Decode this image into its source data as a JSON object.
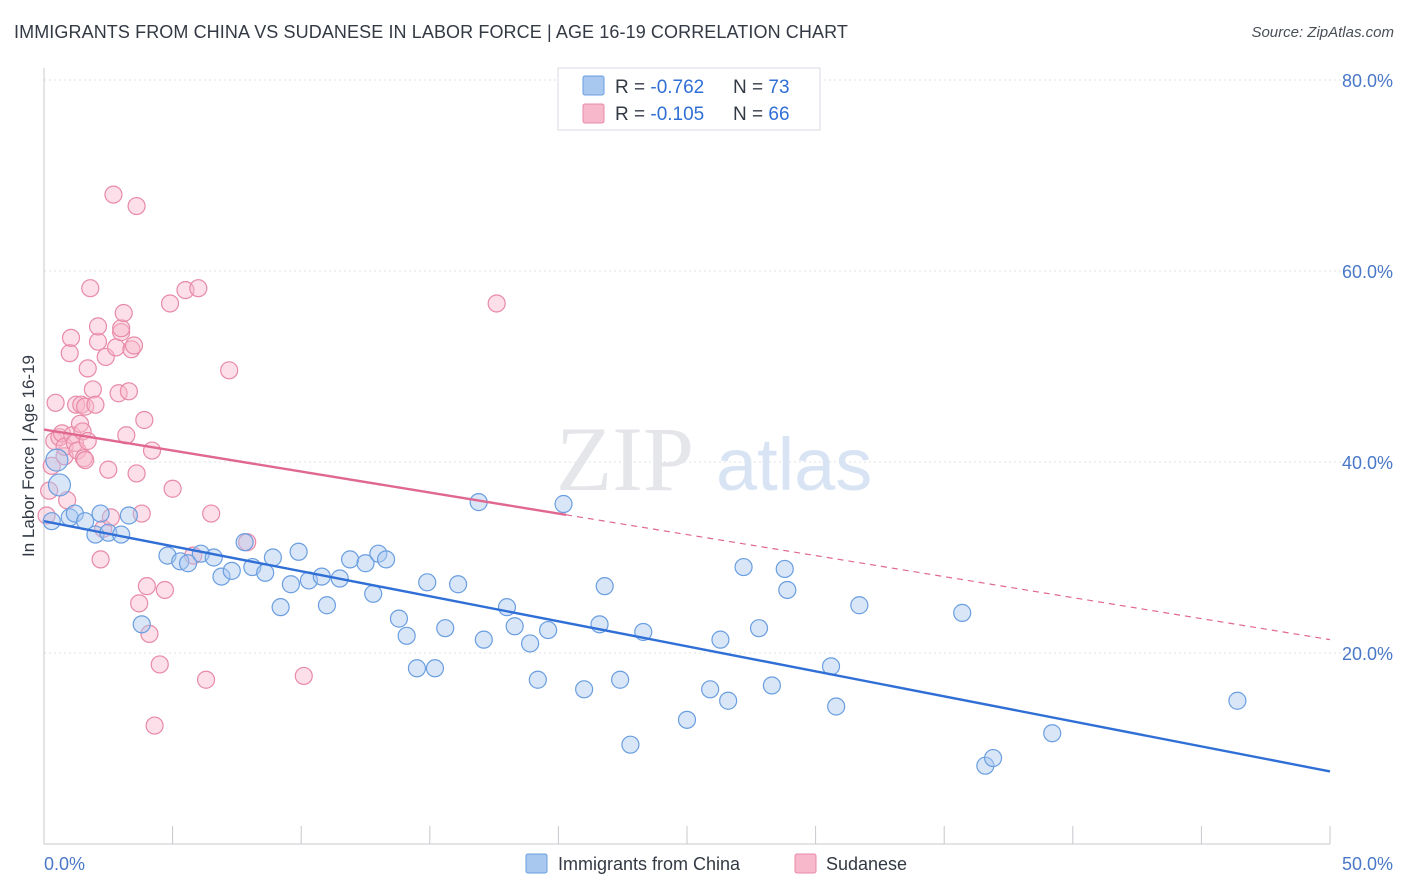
{
  "title": "IMMIGRANTS FROM CHINA VS SUDANESE IN LABOR FORCE | AGE 16-19 CORRELATION CHART",
  "source": "Source: ZipAtlas.com",
  "watermark": {
    "zip": "ZIP",
    "atlas": "atlas"
  },
  "colors": {
    "china_fill": "#a8c8f0",
    "china_stroke": "#6a9ee0",
    "china_line": "#2f6fd6",
    "sudan_fill": "#f8b8cc",
    "sudan_stroke": "#e88aa8",
    "sudan_line": "#e06890",
    "grid": "#dde1e6",
    "tick_text": "#4a78c8"
  },
  "legend": {
    "rows": [
      {
        "r_label": "R = ",
        "r_value": "-0.762",
        "n_label": "N = ",
        "n_value": "73",
        "series": "china"
      },
      {
        "r_label": "R = ",
        "r_value": "-0.105",
        "n_label": "N = ",
        "n_value": "66",
        "series": "sudan"
      }
    ]
  },
  "chart_data": {
    "type": "scatter",
    "title": "IMMIGRANTS FROM CHINA VS SUDANESE IN LABOR FORCE | AGE 16-19 CORRELATION CHART",
    "xlabel": "",
    "ylabel": "In Labor Force | Age 16-19",
    "xlim": [
      0,
      50
    ],
    "ylim": [
      0,
      80
    ],
    "x_tick_labels": [
      "0.0%",
      "50.0%"
    ],
    "y_ticks": [
      20,
      40,
      60,
      80
    ],
    "y_tick_labels": [
      "20.0%",
      "40.0%",
      "60.0%",
      "80.0%"
    ],
    "grid": true,
    "legend_position": "top-center",
    "series": [
      {
        "name": "Immigrants from China",
        "key": "china",
        "r": -0.762,
        "n": 73,
        "trend": {
          "x": [
            0,
            50
          ],
          "y": [
            33.8,
            7.6
          ],
          "dashed_after": null
        },
        "points": [
          [
            0.3,
            33.8
          ],
          [
            0.5,
            40.2
          ],
          [
            0.6,
            37.6
          ],
          [
            1.0,
            34.2
          ],
          [
            1.2,
            34.6
          ],
          [
            1.6,
            33.8
          ],
          [
            2.0,
            32.4
          ],
          [
            2.2,
            34.6
          ],
          [
            2.5,
            32.6
          ],
          [
            3.0,
            32.4
          ],
          [
            3.3,
            34.4
          ],
          [
            3.8,
            23.0
          ],
          [
            4.8,
            30.2
          ],
          [
            5.3,
            29.6
          ],
          [
            5.6,
            29.4
          ],
          [
            6.1,
            30.4
          ],
          [
            6.6,
            30.0
          ],
          [
            6.9,
            28.0
          ],
          [
            7.3,
            28.6
          ],
          [
            7.8,
            31.6
          ],
          [
            8.1,
            29.0
          ],
          [
            8.6,
            28.4
          ],
          [
            8.9,
            30.0
          ],
          [
            9.2,
            24.8
          ],
          [
            9.6,
            27.2
          ],
          [
            9.9,
            30.6
          ],
          [
            10.3,
            27.6
          ],
          [
            10.8,
            28.0
          ],
          [
            11.0,
            25.0
          ],
          [
            11.5,
            27.8
          ],
          [
            11.9,
            29.8
          ],
          [
            12.5,
            29.4
          ],
          [
            12.8,
            26.2
          ],
          [
            13.0,
            30.4
          ],
          [
            13.3,
            29.8
          ],
          [
            13.8,
            23.6
          ],
          [
            14.1,
            21.8
          ],
          [
            14.5,
            18.4
          ],
          [
            14.9,
            27.4
          ],
          [
            15.2,
            18.4
          ],
          [
            15.6,
            22.6
          ],
          [
            16.1,
            27.2
          ],
          [
            16.9,
            35.8
          ],
          [
            17.1,
            21.4
          ],
          [
            18.0,
            24.8
          ],
          [
            18.3,
            22.8
          ],
          [
            18.9,
            21.0
          ],
          [
            19.2,
            17.2
          ],
          [
            19.6,
            22.4
          ],
          [
            20.2,
            35.6
          ],
          [
            21.0,
            16.2
          ],
          [
            21.6,
            23.0
          ],
          [
            21.8,
            27.0
          ],
          [
            22.4,
            17.2
          ],
          [
            22.8,
            10.4
          ],
          [
            23.3,
            22.2
          ],
          [
            25.0,
            13.0
          ],
          [
            25.9,
            16.2
          ],
          [
            26.3,
            21.4
          ],
          [
            26.6,
            15.0
          ],
          [
            27.2,
            29.0
          ],
          [
            27.8,
            22.6
          ],
          [
            28.3,
            16.6
          ],
          [
            28.8,
            28.8
          ],
          [
            28.9,
            26.6
          ],
          [
            30.6,
            18.6
          ],
          [
            30.8,
            14.4
          ],
          [
            31.7,
            25.0
          ],
          [
            35.7,
            24.2
          ],
          [
            36.6,
            8.2
          ],
          [
            36.9,
            9.0
          ],
          [
            39.2,
            11.6
          ],
          [
            46.4,
            15.0
          ]
        ]
      },
      {
        "name": "Sudanese",
        "key": "sudan",
        "r": -0.105,
        "n": 66,
        "trend": {
          "x": [
            0,
            50
          ],
          "y": [
            43.4,
            21.4
          ],
          "solid_until_x": 20.3
        },
        "points": [
          [
            0.1,
            34.4
          ],
          [
            0.2,
            37.0
          ],
          [
            0.3,
            39.6
          ],
          [
            0.4,
            42.2
          ],
          [
            0.45,
            46.2
          ],
          [
            0.6,
            42.6
          ],
          [
            0.7,
            43.0
          ],
          [
            0.8,
            40.6
          ],
          [
            0.8,
            41.6
          ],
          [
            0.9,
            36.0
          ],
          [
            1.0,
            51.4
          ],
          [
            1.05,
            53.0
          ],
          [
            1.1,
            42.8
          ],
          [
            1.2,
            42.0
          ],
          [
            1.25,
            46.0
          ],
          [
            1.3,
            41.2
          ],
          [
            1.4,
            44.0
          ],
          [
            1.45,
            46.0
          ],
          [
            1.5,
            43.2
          ],
          [
            1.55,
            40.4
          ],
          [
            1.6,
            45.8
          ],
          [
            1.6,
            40.2
          ],
          [
            1.7,
            42.2
          ],
          [
            1.7,
            49.8
          ],
          [
            1.8,
            58.2
          ],
          [
            1.9,
            47.6
          ],
          [
            2.0,
            46.0
          ],
          [
            2.1,
            52.6
          ],
          [
            2.1,
            54.2
          ],
          [
            2.2,
            29.8
          ],
          [
            2.3,
            33.0
          ],
          [
            2.4,
            51.0
          ],
          [
            2.5,
            39.2
          ],
          [
            2.6,
            34.2
          ],
          [
            2.7,
            68.0
          ],
          [
            2.8,
            52.0
          ],
          [
            2.9,
            47.2
          ],
          [
            3.0,
            53.6
          ],
          [
            3.0,
            54.0
          ],
          [
            3.1,
            55.6
          ],
          [
            3.2,
            42.8
          ],
          [
            3.3,
            47.4
          ],
          [
            3.4,
            51.8
          ],
          [
            3.5,
            52.2
          ],
          [
            3.6,
            38.8
          ],
          [
            3.6,
            66.8
          ],
          [
            3.7,
            25.2
          ],
          [
            3.8,
            34.6
          ],
          [
            3.9,
            44.4
          ],
          [
            4.0,
            27.0
          ],
          [
            4.1,
            22.0
          ],
          [
            4.2,
            41.2
          ],
          [
            4.3,
            12.4
          ],
          [
            4.5,
            18.8
          ],
          [
            4.7,
            26.6
          ],
          [
            4.9,
            56.6
          ],
          [
            5.0,
            37.2
          ],
          [
            5.5,
            58.0
          ],
          [
            5.8,
            30.2
          ],
          [
            6.0,
            58.2
          ],
          [
            6.3,
            17.2
          ],
          [
            6.5,
            34.6
          ],
          [
            7.2,
            49.6
          ],
          [
            7.9,
            31.6
          ],
          [
            10.1,
            17.6
          ],
          [
            17.6,
            56.6
          ]
        ]
      }
    ]
  },
  "bottom_legend": [
    {
      "label": "Immigrants from China",
      "series": "china"
    },
    {
      "label": "Sudanese",
      "series": "sudan"
    }
  ]
}
